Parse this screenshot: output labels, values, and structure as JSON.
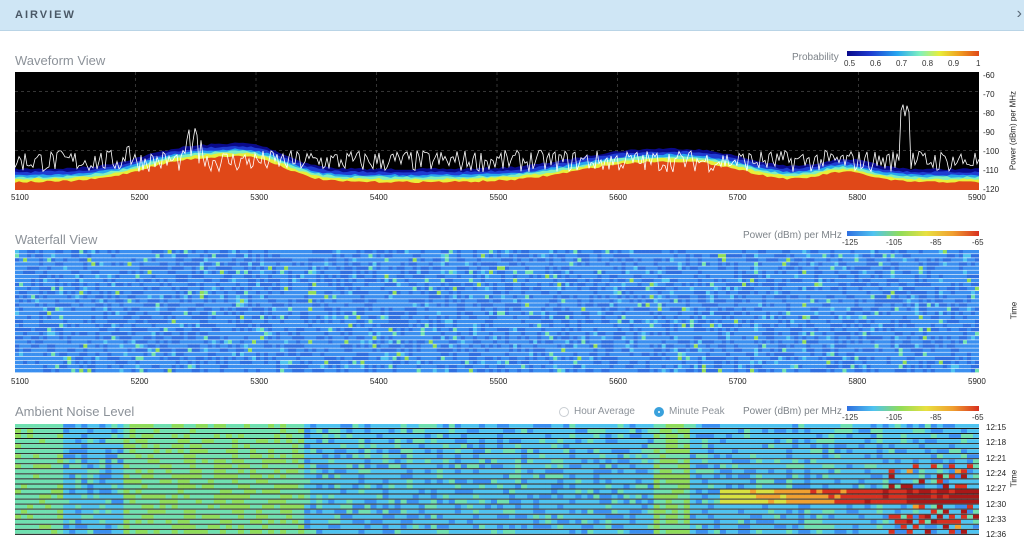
{
  "header": {
    "title": "AIRVIEW",
    "close_icon": "chevron-right-icon"
  },
  "waveform": {
    "title": "Waveform View",
    "legend": {
      "label": "Probability",
      "ticks": [
        "0.5",
        "0.6",
        "0.7",
        "0.8",
        "0.9",
        "1"
      ],
      "colors": [
        "#0a0a8a",
        "#1f3cd1",
        "#27a6f0",
        "#7ef0c0",
        "#e8ef3a",
        "#f0a020",
        "#e04818"
      ]
    },
    "x_ticks": [
      "5100",
      "5200",
      "5300",
      "5400",
      "5500",
      "5600",
      "5700",
      "5800",
      "5900"
    ],
    "y_ticks": [
      "-60",
      "-70",
      "-80",
      "-90",
      "-100",
      "-110",
      "-120"
    ],
    "y_title": "Power (dBm) per MHz"
  },
  "waterfall": {
    "title": "Waterfall View",
    "legend": {
      "label": "Power (dBm) per MHz",
      "ticks": [
        "-125",
        "-105",
        "-85",
        "-65"
      ]
    },
    "x_ticks": [
      "5100",
      "5200",
      "5300",
      "5400",
      "5500",
      "5600",
      "5700",
      "5800",
      "5900"
    ],
    "y_title": "Time"
  },
  "ambient": {
    "title": "Ambient Noise Level",
    "radio_hour": "Hour Average",
    "radio_minute": "Minute Peak",
    "selected": "Minute Peak",
    "legend": {
      "label": "Power (dBm) per MHz",
      "ticks": [
        "-125",
        "-105",
        "-85",
        "-65"
      ]
    },
    "time_ticks": [
      "12:15",
      "12:18",
      "12:21",
      "12:24",
      "12:27",
      "12:30",
      "12:33",
      "12:36"
    ],
    "y_title": "Time"
  },
  "colors": {
    "heat": [
      "#2f6fe0",
      "#3a8ff0",
      "#4fc3f0",
      "#6fe0b0",
      "#8fdc5a",
      "#d8e040",
      "#f0a030",
      "#d83020",
      "#a81818"
    ]
  }
}
